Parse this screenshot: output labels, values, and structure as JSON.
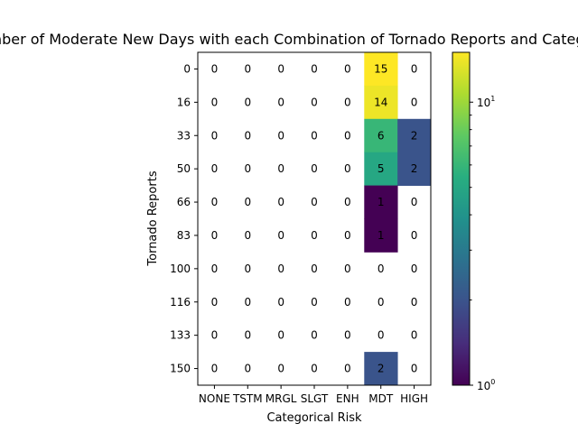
{
  "chart_data": {
    "type": "heatmap",
    "title": "Number of Moderate New Days with each Combination of Tornado Reports and Categorical Risk",
    "xlabel": "Categorical Risk",
    "ylabel": "Tornado Reports",
    "x_categories": [
      "NONE",
      "TSTM",
      "MRGL",
      "SLGT",
      "ENH",
      "MDT",
      "HIGH"
    ],
    "y_categories": [
      "0",
      "16",
      "33",
      "50",
      "66",
      "83",
      "100",
      "116",
      "133",
      "150"
    ],
    "values": [
      [
        0,
        0,
        0,
        0,
        0,
        15,
        0
      ],
      [
        0,
        0,
        0,
        0,
        0,
        14,
        0
      ],
      [
        0,
        0,
        0,
        0,
        0,
        6,
        2
      ],
      [
        0,
        0,
        0,
        0,
        0,
        5,
        2
      ],
      [
        0,
        0,
        0,
        0,
        0,
        1,
        0
      ],
      [
        0,
        0,
        0,
        0,
        0,
        1,
        0
      ],
      [
        0,
        0,
        0,
        0,
        0,
        0,
        0
      ],
      [
        0,
        0,
        0,
        0,
        0,
        0,
        0
      ],
      [
        0,
        0,
        0,
        0,
        0,
        0,
        0
      ],
      [
        0,
        0,
        0,
        0,
        0,
        2,
        0
      ]
    ],
    "colormap": "viridis",
    "color_scale": "log",
    "zero_cells": "blank",
    "colorbar": {
      "range": [
        1,
        15
      ],
      "tick_labels": [
        {
          "base": "10",
          "exp": "0"
        },
        {
          "base": "10",
          "exp": "1"
        }
      ]
    }
  }
}
